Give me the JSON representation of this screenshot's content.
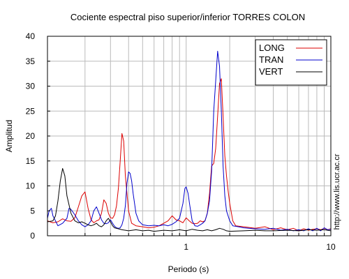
{
  "chart_data": {
    "type": "line",
    "title": "Cociente espectral piso superior/inferior  TORRES COLON",
    "xlabel": "Periodo (s)",
    "ylabel": "Amplitud",
    "x_scale": "log",
    "xlim": [
      0.11,
      10
    ],
    "ylim": [
      0,
      40
    ],
    "x_ticks": [
      {
        "value": 1,
        "label": "1"
      },
      {
        "value": 10,
        "label": "10"
      }
    ],
    "y_ticks": [
      0,
      5,
      10,
      15,
      20,
      25,
      30,
      35,
      40
    ],
    "grid": true,
    "legend_position": "top-right",
    "watermark": "http://www.lis.ucr.ac.cr",
    "series": [
      {
        "name": "LONG",
        "color": "#dd0000",
        "points": [
          [
            0.11,
            3.0
          ],
          [
            0.12,
            2.6
          ],
          [
            0.13,
            2.8
          ],
          [
            0.14,
            3.4
          ],
          [
            0.15,
            3.0
          ],
          [
            0.16,
            2.9
          ],
          [
            0.17,
            3.6
          ],
          [
            0.18,
            5.8
          ],
          [
            0.19,
            8.0
          ],
          [
            0.2,
            8.8
          ],
          [
            0.21,
            5.5
          ],
          [
            0.22,
            3.2
          ],
          [
            0.23,
            2.6
          ],
          [
            0.24,
            3.0
          ],
          [
            0.25,
            3.2
          ],
          [
            0.26,
            4.5
          ],
          [
            0.27,
            7.2
          ],
          [
            0.28,
            6.5
          ],
          [
            0.29,
            4.5
          ],
          [
            0.3,
            3.6
          ],
          [
            0.31,
            3.5
          ],
          [
            0.32,
            4.2
          ],
          [
            0.33,
            6.0
          ],
          [
            0.34,
            9.5
          ],
          [
            0.35,
            15.0
          ],
          [
            0.36,
            20.5
          ],
          [
            0.37,
            19.0
          ],
          [
            0.38,
            12.0
          ],
          [
            0.4,
            5.0
          ],
          [
            0.42,
            2.5
          ],
          [
            0.45,
            2.0
          ],
          [
            0.5,
            1.8
          ],
          [
            0.55,
            1.6
          ],
          [
            0.6,
            1.7
          ],
          [
            0.65,
            2.0
          ],
          [
            0.7,
            2.5
          ],
          [
            0.75,
            3.0
          ],
          [
            0.8,
            4.0
          ],
          [
            0.85,
            3.2
          ],
          [
            0.9,
            3.0
          ],
          [
            0.95,
            2.6
          ],
          [
            1.0,
            3.6
          ],
          [
            1.05,
            3.0
          ],
          [
            1.1,
            2.5
          ],
          [
            1.15,
            2.4
          ],
          [
            1.2,
            2.5
          ],
          [
            1.25,
            3.0
          ],
          [
            1.3,
            2.8
          ],
          [
            1.35,
            3.0
          ],
          [
            1.4,
            4.5
          ],
          [
            1.45,
            8.5
          ],
          [
            1.5,
            14.0
          ],
          [
            1.55,
            14.5
          ],
          [
            1.6,
            17.5
          ],
          [
            1.65,
            24.0
          ],
          [
            1.7,
            30.5
          ],
          [
            1.75,
            31.5
          ],
          [
            1.8,
            24.0
          ],
          [
            1.85,
            16.0
          ],
          [
            1.9,
            12.0
          ],
          [
            1.95,
            9.0
          ],
          [
            2.0,
            6.5
          ],
          [
            2.1,
            3.0
          ],
          [
            2.2,
            2.0
          ],
          [
            2.5,
            1.8
          ],
          [
            3.0,
            1.5
          ],
          [
            3.5,
            1.8
          ],
          [
            4.0,
            1.2
          ],
          [
            4.5,
            1.6
          ],
          [
            5.0,
            1.2
          ],
          [
            5.5,
            1.5
          ],
          [
            6.0,
            1.0
          ],
          [
            6.5,
            1.4
          ],
          [
            7.0,
            1.1
          ],
          [
            7.5,
            1.3
          ],
          [
            8.0,
            1.4
          ],
          [
            8.5,
            1.2
          ],
          [
            9.0,
            1.5
          ],
          [
            9.5,
            1.2
          ],
          [
            10.0,
            1.4
          ]
        ]
      },
      {
        "name": "TRAN",
        "color": "#0000cc",
        "points": [
          [
            0.11,
            3.5
          ],
          [
            0.113,
            5.0
          ],
          [
            0.117,
            5.5
          ],
          [
            0.12,
            4.0
          ],
          [
            0.13,
            2.0
          ],
          [
            0.14,
            2.5
          ],
          [
            0.15,
            3.5
          ],
          [
            0.155,
            5.5
          ],
          [
            0.16,
            5.3
          ],
          [
            0.17,
            4.2
          ],
          [
            0.18,
            3.0
          ],
          [
            0.19,
            2.2
          ],
          [
            0.2,
            1.8
          ],
          [
            0.21,
            2.2
          ],
          [
            0.22,
            3.0
          ],
          [
            0.23,
            5.0
          ],
          [
            0.24,
            5.8
          ],
          [
            0.25,
            4.5
          ],
          [
            0.26,
            3.2
          ],
          [
            0.27,
            2.5
          ],
          [
            0.28,
            2.4
          ],
          [
            0.29,
            2.6
          ],
          [
            0.3,
            3.2
          ],
          [
            0.31,
            2.5
          ],
          [
            0.32,
            1.9
          ],
          [
            0.33,
            1.6
          ],
          [
            0.34,
            1.5
          ],
          [
            0.35,
            1.6
          ],
          [
            0.36,
            2.2
          ],
          [
            0.37,
            3.5
          ],
          [
            0.38,
            6.0
          ],
          [
            0.39,
            10.5
          ],
          [
            0.4,
            12.8
          ],
          [
            0.41,
            12.5
          ],
          [
            0.42,
            11.0
          ],
          [
            0.43,
            8.5
          ],
          [
            0.45,
            4.5
          ],
          [
            0.47,
            3.0
          ],
          [
            0.5,
            2.2
          ],
          [
            0.55,
            2.0
          ],
          [
            0.6,
            2.1
          ],
          [
            0.65,
            2.0
          ],
          [
            0.7,
            2.2
          ],
          [
            0.75,
            2.0
          ],
          [
            0.8,
            2.3
          ],
          [
            0.85,
            2.8
          ],
          [
            0.9,
            3.5
          ],
          [
            0.95,
            6.5
          ],
          [
            0.98,
            9.5
          ],
          [
            1.0,
            9.8
          ],
          [
            1.03,
            8.5
          ],
          [
            1.06,
            6.0
          ],
          [
            1.1,
            3.0
          ],
          [
            1.15,
            2.0
          ],
          [
            1.2,
            1.9
          ],
          [
            1.25,
            2.2
          ],
          [
            1.3,
            2.5
          ],
          [
            1.35,
            3.0
          ],
          [
            1.4,
            4.5
          ],
          [
            1.45,
            7.0
          ],
          [
            1.5,
            13.0
          ],
          [
            1.55,
            25.0
          ],
          [
            1.6,
            31.0
          ],
          [
            1.65,
            37.0
          ],
          [
            1.7,
            34.0
          ],
          [
            1.75,
            25.0
          ],
          [
            1.8,
            14.0
          ],
          [
            1.85,
            8.0
          ],
          [
            1.9,
            5.0
          ],
          [
            2.0,
            3.0
          ],
          [
            2.1,
            2.0
          ],
          [
            2.3,
            1.8
          ],
          [
            2.5,
            1.6
          ],
          [
            3.0,
            1.4
          ],
          [
            3.5,
            1.3
          ],
          [
            4.0,
            1.5
          ],
          [
            4.5,
            1.1
          ],
          [
            5.0,
            1.3
          ],
          [
            5.5,
            1.0
          ],
          [
            6.0,
            1.2
          ],
          [
            6.5,
            1.0
          ],
          [
            7.0,
            1.4
          ],
          [
            7.5,
            1.0
          ],
          [
            8.0,
            1.5
          ],
          [
            8.5,
            1.0
          ],
          [
            9.0,
            1.6
          ],
          [
            9.5,
            1.2
          ],
          [
            10.0,
            1.3
          ]
        ]
      },
      {
        "name": "VERT",
        "color": "#000000",
        "points": [
          [
            0.11,
            2.8
          ],
          [
            0.12,
            3.0
          ],
          [
            0.125,
            4.0
          ],
          [
            0.13,
            7.0
          ],
          [
            0.135,
            11.0
          ],
          [
            0.14,
            13.5
          ],
          [
            0.145,
            12.0
          ],
          [
            0.15,
            8.0
          ],
          [
            0.16,
            4.5
          ],
          [
            0.17,
            3.0
          ],
          [
            0.18,
            2.6
          ],
          [
            0.19,
            2.8
          ],
          [
            0.2,
            2.5
          ],
          [
            0.21,
            2.2
          ],
          [
            0.22,
            2.0
          ],
          [
            0.23,
            2.2
          ],
          [
            0.24,
            2.5
          ],
          [
            0.25,
            2.0
          ],
          [
            0.26,
            1.8
          ],
          [
            0.27,
            2.2
          ],
          [
            0.28,
            3.0
          ],
          [
            0.29,
            3.5
          ],
          [
            0.3,
            2.8
          ],
          [
            0.31,
            2.0
          ],
          [
            0.32,
            1.6
          ],
          [
            0.34,
            1.4
          ],
          [
            0.36,
            1.2
          ],
          [
            0.38,
            1.1
          ],
          [
            0.4,
            1.0
          ],
          [
            0.45,
            1.2
          ],
          [
            0.5,
            1.0
          ],
          [
            0.55,
            1.1
          ],
          [
            0.6,
            0.9
          ],
          [
            0.7,
            1.1
          ],
          [
            0.8,
            1.0
          ],
          [
            0.9,
            1.2
          ],
          [
            1.0,
            1.0
          ],
          [
            1.1,
            1.3
          ],
          [
            1.2,
            1.1
          ],
          [
            1.3,
            1.0
          ],
          [
            1.4,
            1.2
          ],
          [
            1.5,
            1.0
          ],
          [
            1.6,
            1.2
          ],
          [
            1.7,
            1.5
          ],
          [
            1.8,
            1.3
          ],
          [
            1.9,
            1.0
          ],
          [
            2.0,
            0.9
          ],
          [
            2.5,
            1.0
          ],
          [
            3.0,
            1.1
          ],
          [
            3.5,
            1.0
          ],
          [
            4.0,
            1.0
          ],
          [
            5.0,
            1.1
          ],
          [
            6.0,
            1.0
          ],
          [
            7.0,
            1.2
          ],
          [
            8.0,
            1.1
          ],
          [
            9.0,
            1.2
          ],
          [
            10.0,
            1.0
          ]
        ]
      }
    ]
  }
}
